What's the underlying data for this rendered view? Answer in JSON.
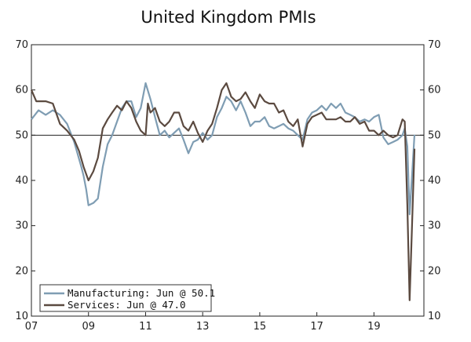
{
  "chart_data": {
    "type": "line",
    "title": "United Kingdom PMIs",
    "x_ticks": [
      {
        "label": "07",
        "x": 2007.0
      },
      {
        "label": "09",
        "x": 2009.0
      },
      {
        "label": "11",
        "x": 2011.0
      },
      {
        "label": "13",
        "x": 2013.0
      },
      {
        "label": "15",
        "x": 2015.0
      },
      {
        "label": "17",
        "x": 2017.0
      },
      {
        "label": "19",
        "x": 2019.0
      }
    ],
    "xlim": [
      2007.0,
      2020.75
    ],
    "ylim": [
      10,
      70
    ],
    "y_ticks": [
      10,
      20,
      30,
      40,
      50,
      60,
      70
    ],
    "y_tick_labels": [
      "10",
      "20",
      "30",
      "40",
      "50",
      "60",
      "70"
    ],
    "reference_line": 50,
    "grid": false,
    "legend_position": "bottom-left",
    "series": [
      {
        "name": "Manufacturing: Jun @ 50.1",
        "color": "#7f9db3",
        "points": [
          [
            2007.0,
            53.5
          ],
          [
            2007.25,
            55.5
          ],
          [
            2007.5,
            54.5
          ],
          [
            2007.75,
            55.5
          ],
          [
            2008.0,
            54.5
          ],
          [
            2008.25,
            52.5
          ],
          [
            2008.5,
            48.5
          ],
          [
            2008.75,
            43
          ],
          [
            2008.83,
            41
          ],
          [
            2008.92,
            38
          ],
          [
            2009.0,
            34.5
          ],
          [
            2009.17,
            35
          ],
          [
            2009.33,
            36
          ],
          [
            2009.5,
            43
          ],
          [
            2009.67,
            48
          ],
          [
            2009.83,
            50
          ],
          [
            2010.0,
            53
          ],
          [
            2010.17,
            56
          ],
          [
            2010.33,
            57.5
          ],
          [
            2010.5,
            57.5
          ],
          [
            2010.67,
            54
          ],
          [
            2010.83,
            56
          ],
          [
            2011.0,
            61.5
          ],
          [
            2011.17,
            58
          ],
          [
            2011.33,
            54
          ],
          [
            2011.5,
            50
          ],
          [
            2011.67,
            51
          ],
          [
            2011.83,
            49.5
          ],
          [
            2012.0,
            50.5
          ],
          [
            2012.17,
            51.5
          ],
          [
            2012.33,
            49
          ],
          [
            2012.5,
            46
          ],
          [
            2012.67,
            48.5
          ],
          [
            2012.83,
            49
          ],
          [
            2013.0,
            50.5
          ],
          [
            2013.17,
            49
          ],
          [
            2013.33,
            50
          ],
          [
            2013.5,
            54
          ],
          [
            2013.67,
            56
          ],
          [
            2013.83,
            58.5
          ],
          [
            2014.0,
            57.5
          ],
          [
            2014.17,
            55.5
          ],
          [
            2014.33,
            57.5
          ],
          [
            2014.5,
            55
          ],
          [
            2014.67,
            52
          ],
          [
            2014.83,
            53
          ],
          [
            2015.0,
            53
          ],
          [
            2015.17,
            54
          ],
          [
            2015.33,
            52
          ],
          [
            2015.5,
            51.5
          ],
          [
            2015.67,
            52
          ],
          [
            2015.83,
            52.5
          ],
          [
            2016.0,
            51.5
          ],
          [
            2016.17,
            51
          ],
          [
            2016.33,
            50
          ],
          [
            2016.5,
            49
          ],
          [
            2016.67,
            53.5
          ],
          [
            2016.83,
            55
          ],
          [
            2017.0,
            55.5
          ],
          [
            2017.17,
            56.5
          ],
          [
            2017.33,
            55.5
          ],
          [
            2017.5,
            57
          ],
          [
            2017.67,
            56
          ],
          [
            2017.83,
            57
          ],
          [
            2018.0,
            55
          ],
          [
            2018.17,
            54.5
          ],
          [
            2018.33,
            54
          ],
          [
            2018.5,
            53
          ],
          [
            2018.67,
            53.5
          ],
          [
            2018.83,
            53
          ],
          [
            2019.0,
            54
          ],
          [
            2019.17,
            54.5
          ],
          [
            2019.33,
            49.5
          ],
          [
            2019.5,
            48
          ],
          [
            2019.67,
            48.5
          ],
          [
            2019.83,
            49
          ],
          [
            2020.0,
            50
          ],
          [
            2020.08,
            51.5
          ],
          [
            2020.17,
            47.5
          ],
          [
            2020.25,
            32.5
          ],
          [
            2020.33,
            40.5
          ],
          [
            2020.42,
            50.1
          ]
        ]
      },
      {
        "name": "Services: Jun @ 47.0",
        "color": "#5b4a40",
        "points": [
          [
            2007.0,
            60
          ],
          [
            2007.17,
            57.5
          ],
          [
            2007.5,
            57.5
          ],
          [
            2007.75,
            57
          ],
          [
            2008.0,
            52.5
          ],
          [
            2008.25,
            51
          ],
          [
            2008.5,
            49
          ],
          [
            2008.67,
            46.5
          ],
          [
            2008.83,
            43
          ],
          [
            2009.0,
            40
          ],
          [
            2009.17,
            42
          ],
          [
            2009.33,
            45
          ],
          [
            2009.5,
            51.5
          ],
          [
            2009.67,
            53.5
          ],
          [
            2009.83,
            55
          ],
          [
            2010.0,
            56.5
          ],
          [
            2010.17,
            55.5
          ],
          [
            2010.33,
            57.5
          ],
          [
            2010.5,
            56
          ],
          [
            2010.67,
            53
          ],
          [
            2010.83,
            51
          ],
          [
            2011.0,
            50
          ],
          [
            2011.08,
            57
          ],
          [
            2011.17,
            55
          ],
          [
            2011.33,
            56
          ],
          [
            2011.5,
            53
          ],
          [
            2011.67,
            52
          ],
          [
            2011.83,
            53
          ],
          [
            2012.0,
            55
          ],
          [
            2012.17,
            55
          ],
          [
            2012.33,
            52
          ],
          [
            2012.5,
            51
          ],
          [
            2012.67,
            53
          ],
          [
            2012.83,
            50.5
          ],
          [
            2013.0,
            48.5
          ],
          [
            2013.17,
            51
          ],
          [
            2013.33,
            52.5
          ],
          [
            2013.5,
            56
          ],
          [
            2013.67,
            60
          ],
          [
            2013.83,
            61.5
          ],
          [
            2014.0,
            58.5
          ],
          [
            2014.17,
            57.5
          ],
          [
            2014.33,
            58
          ],
          [
            2014.5,
            59.5
          ],
          [
            2014.67,
            57.5
          ],
          [
            2014.83,
            56
          ],
          [
            2015.0,
            59
          ],
          [
            2015.17,
            57.5
          ],
          [
            2015.33,
            57
          ],
          [
            2015.5,
            57
          ],
          [
            2015.67,
            55
          ],
          [
            2015.83,
            55.5
          ],
          [
            2016.0,
            53
          ],
          [
            2016.17,
            52
          ],
          [
            2016.33,
            53.5
          ],
          [
            2016.5,
            47.5
          ],
          [
            2016.67,
            52.5
          ],
          [
            2016.83,
            54
          ],
          [
            2017.0,
            54.5
          ],
          [
            2017.17,
            55
          ],
          [
            2017.33,
            53.5
          ],
          [
            2017.5,
            53.5
          ],
          [
            2017.67,
            53.5
          ],
          [
            2017.83,
            54
          ],
          [
            2018.0,
            53
          ],
          [
            2018.17,
            53
          ],
          [
            2018.33,
            54
          ],
          [
            2018.5,
            52.5
          ],
          [
            2018.67,
            53
          ],
          [
            2018.83,
            51
          ],
          [
            2019.0,
            51
          ],
          [
            2019.17,
            50
          ],
          [
            2019.33,
            51
          ],
          [
            2019.5,
            50
          ],
          [
            2019.67,
            49.5
          ],
          [
            2019.83,
            50
          ],
          [
            2020.0,
            53.5
          ],
          [
            2020.08,
            53
          ],
          [
            2020.17,
            34.5
          ],
          [
            2020.25,
            13.5
          ],
          [
            2020.33,
            29
          ],
          [
            2020.42,
            47.0
          ]
        ]
      }
    ]
  }
}
